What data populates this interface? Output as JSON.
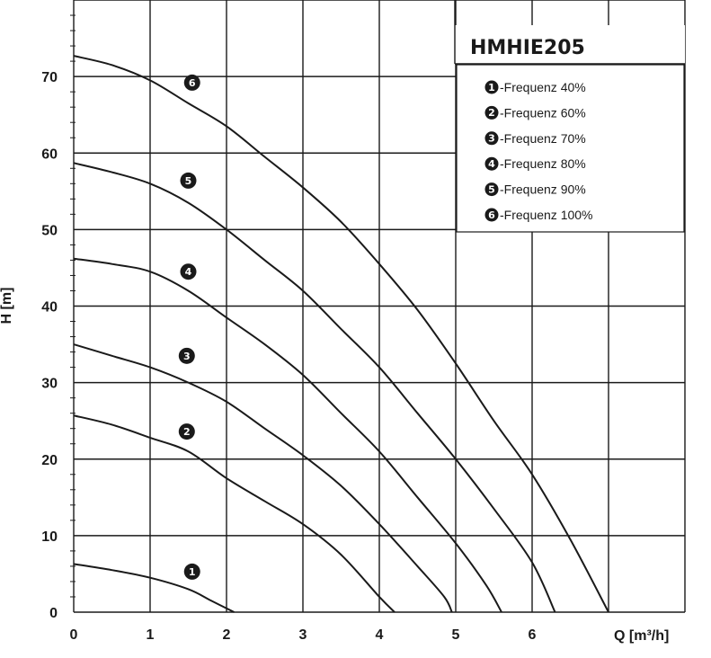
{
  "chart_data": {
    "type": "line",
    "title": "HMHIE205",
    "xlabel": "Q [m³/h]",
    "ylabel": "H [m]",
    "xlim": [
      0,
      8
    ],
    "ylim": [
      0,
      80
    ],
    "x_ticks": [
      "0",
      "1",
      "2",
      "3",
      "4",
      "5",
      "6"
    ],
    "y_ticks": [
      "0",
      "10",
      "20",
      "30",
      "40",
      "50",
      "60",
      "70"
    ],
    "grid": true,
    "legend_position": "top-right",
    "series": [
      {
        "name": "-Frequenz 40%",
        "badge": "1",
        "x": [
          0,
          0.5,
          1.0,
          1.5,
          1.8,
          2.1
        ],
        "y": [
          6.3,
          5.5,
          4.5,
          3.0,
          1.5,
          0
        ]
      },
      {
        "name": "-Frequenz 60%",
        "badge": "2",
        "x": [
          0,
          0.5,
          1.0,
          1.5,
          2.0,
          2.5,
          3.0,
          3.5,
          4.0,
          4.2
        ],
        "y": [
          25.7,
          24.5,
          22.8,
          21.0,
          17.5,
          14.5,
          11.5,
          7.5,
          2.0,
          0
        ]
      },
      {
        "name": "-Frequenz 70%",
        "badge": "3",
        "x": [
          0,
          0.5,
          1.0,
          1.5,
          2.0,
          2.5,
          3.0,
          3.5,
          4.0,
          4.5,
          4.85,
          4.95
        ],
        "y": [
          35.0,
          33.5,
          32.0,
          30.0,
          27.5,
          24.0,
          20.5,
          16.5,
          11.5,
          6.0,
          2.0,
          0
        ]
      },
      {
        "name": "-Frequenz 80%",
        "badge": "4",
        "x": [
          0,
          0.5,
          1.0,
          1.5,
          2.0,
          2.5,
          3.0,
          3.5,
          4.0,
          4.5,
          5.0,
          5.4,
          5.6
        ],
        "y": [
          46.2,
          45.5,
          44.5,
          42.0,
          38.5,
          35.0,
          31.0,
          26.0,
          21.0,
          15.0,
          9.0,
          3.5,
          0
        ]
      },
      {
        "name": "-Frequenz 90%",
        "badge": "5",
        "x": [
          0,
          0.5,
          1.0,
          1.5,
          2.0,
          2.5,
          3.0,
          3.5,
          4.0,
          4.5,
          5.0,
          5.5,
          6.0,
          6.3
        ],
        "y": [
          58.7,
          57.5,
          56.0,
          53.5,
          50.0,
          46.0,
          42.0,
          37.0,
          32.0,
          26.0,
          20.0,
          13.5,
          6.5,
          0
        ]
      },
      {
        "name": "-Frequenz 100%",
        "badge": "6",
        "x": [
          0,
          0.5,
          1.0,
          1.5,
          2.0,
          2.5,
          3.0,
          3.5,
          4.0,
          4.5,
          5.0,
          5.5,
          6.0,
          6.5,
          7.0
        ],
        "y": [
          72.7,
          71.5,
          69.5,
          66.5,
          63.5,
          59.5,
          55.5,
          51.0,
          45.5,
          39.5,
          32.5,
          25.0,
          18.0,
          9.5,
          0
        ]
      }
    ],
    "curve_labels": [
      {
        "badge": "1",
        "x": 1.55,
        "y": 5.3
      },
      {
        "badge": "2",
        "x": 1.48,
        "y": 23.6
      },
      {
        "badge": "3",
        "x": 1.48,
        "y": 33.5
      },
      {
        "badge": "4",
        "x": 1.5,
        "y": 44.5
      },
      {
        "badge": "5",
        "x": 1.5,
        "y": 56.4
      },
      {
        "badge": "6",
        "x": 1.55,
        "y": 69.2
      }
    ]
  }
}
